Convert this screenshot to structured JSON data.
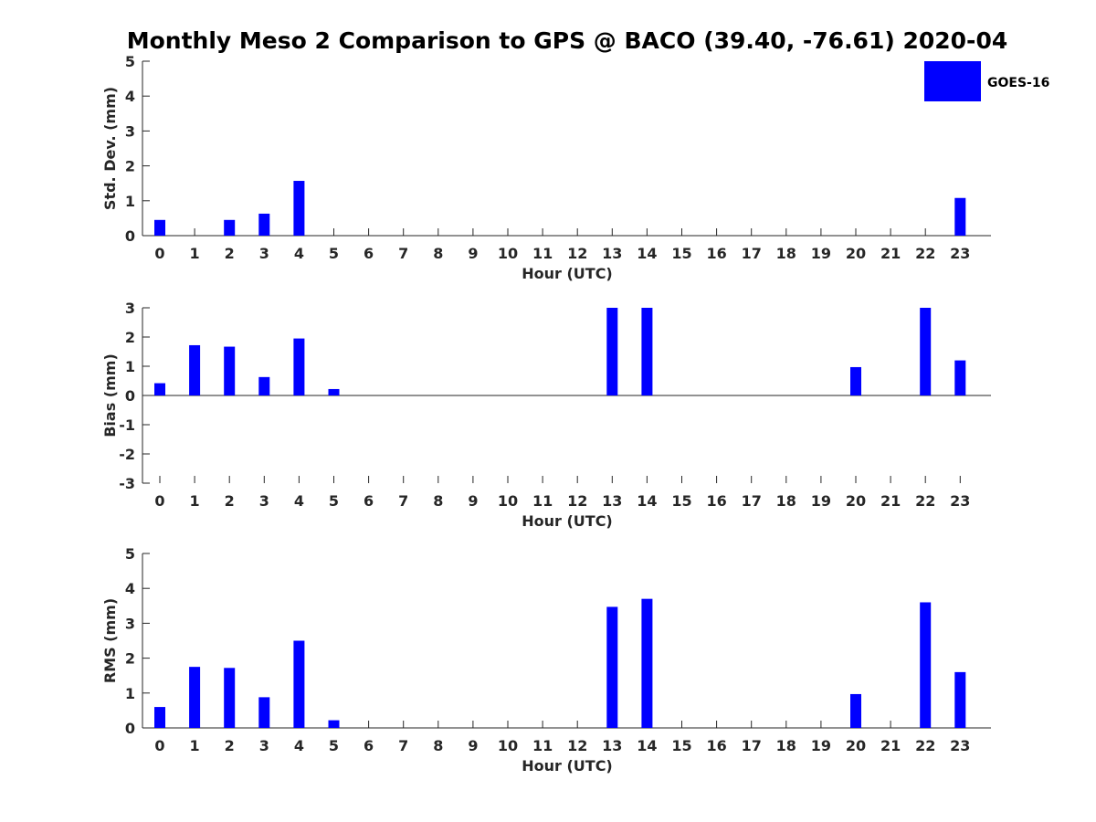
{
  "chart_data": [
    {
      "type": "bar",
      "title": "Monthly Meso 2 Comparison to GPS @ BACO (39.40, -76.61) 2020-04",
      "xlabel": "Hour (UTC)",
      "ylabel": "Std. Dev. (mm)",
      "ylim": [
        0,
        5
      ],
      "yticks": [
        "0",
        "1",
        "2",
        "3",
        "4",
        "5"
      ],
      "categories": [
        "0",
        "1",
        "2",
        "3",
        "4",
        "5",
        "6",
        "7",
        "8",
        "9",
        "10",
        "11",
        "12",
        "13",
        "14",
        "15",
        "16",
        "17",
        "18",
        "19",
        "20",
        "21",
        "22",
        "23"
      ],
      "series": [
        {
          "name": "GOES-16",
          "color": "#0000ff",
          "values": [
            0.45,
            0,
            0.45,
            0.63,
            1.57,
            0,
            0,
            0,
            0,
            0,
            0,
            0,
            0,
            0,
            0,
            0,
            0,
            0,
            0,
            0,
            0,
            0,
            0,
            1.08
          ]
        }
      ],
      "legend": {
        "position": "top-right",
        "entries": [
          "GOES-16"
        ]
      },
      "grid": false
    },
    {
      "type": "bar",
      "xlabel": "Hour (UTC)",
      "ylabel": "Bias (mm)",
      "ylim": [
        -3,
        3
      ],
      "yticks": [
        "-3",
        "-2",
        "-1",
        "0",
        "1",
        "2",
        "3"
      ],
      "categories": [
        "0",
        "1",
        "2",
        "3",
        "4",
        "5",
        "6",
        "7",
        "8",
        "9",
        "10",
        "11",
        "12",
        "13",
        "14",
        "15",
        "16",
        "17",
        "18",
        "19",
        "20",
        "21",
        "22",
        "23"
      ],
      "series": [
        {
          "name": "GOES-16",
          "color": "#0000ff",
          "values": [
            0.42,
            1.72,
            1.67,
            0.63,
            1.95,
            0.22,
            0,
            0,
            0,
            0,
            0,
            0,
            0,
            3.0,
            3.0,
            0,
            0,
            0,
            0,
            0,
            0.97,
            0,
            3.0,
            1.2
          ]
        }
      ],
      "grid": false
    },
    {
      "type": "bar",
      "xlabel": "Hour (UTC)",
      "ylabel": "RMS (mm)",
      "ylim": [
        0,
        5
      ],
      "yticks": [
        "0",
        "1",
        "2",
        "3",
        "4",
        "5"
      ],
      "categories": [
        "0",
        "1",
        "2",
        "3",
        "4",
        "5",
        "6",
        "7",
        "8",
        "9",
        "10",
        "11",
        "12",
        "13",
        "14",
        "15",
        "16",
        "17",
        "18",
        "19",
        "20",
        "21",
        "22",
        "23"
      ],
      "series": [
        {
          "name": "GOES-16",
          "color": "#0000ff",
          "values": [
            0.6,
            1.75,
            1.72,
            0.88,
            2.5,
            0.22,
            0,
            0,
            0,
            0,
            0,
            0,
            0,
            3.47,
            3.7,
            0,
            0,
            0,
            0,
            0,
            0.97,
            0,
            3.6,
            1.6
          ]
        }
      ],
      "grid": false
    }
  ]
}
